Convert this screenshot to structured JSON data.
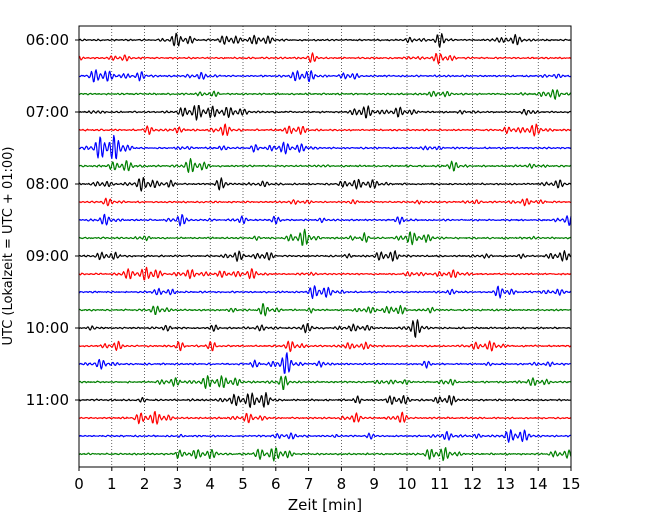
{
  "chart_data": {
    "type": "line",
    "xlabel": "Zeit  [min]",
    "ylabel": "UTC (Lokalzeit = UTC + 01:00)",
    "xlim": [
      0,
      15
    ],
    "xticks": [
      "0",
      "1",
      "2",
      "3",
      "4",
      "5",
      "6",
      "7",
      "8",
      "9",
      "10",
      "11",
      "12",
      "13",
      "14",
      "15"
    ],
    "y_tick_labels": [
      "06:00",
      "07:00",
      "08:00",
      "09:00",
      "10:00",
      "11:00"
    ],
    "traces_per_hour": 4,
    "minutes_per_trace": 15,
    "n_traces": 24,
    "start_time": "06:00",
    "trace_colors": [
      "#000000",
      "#ff0000",
      "#0000ff",
      "#008000"
    ],
    "grid": "vertical dotted at each minute",
    "signal": "seismogram-like oscillation around each trace baseline"
  }
}
